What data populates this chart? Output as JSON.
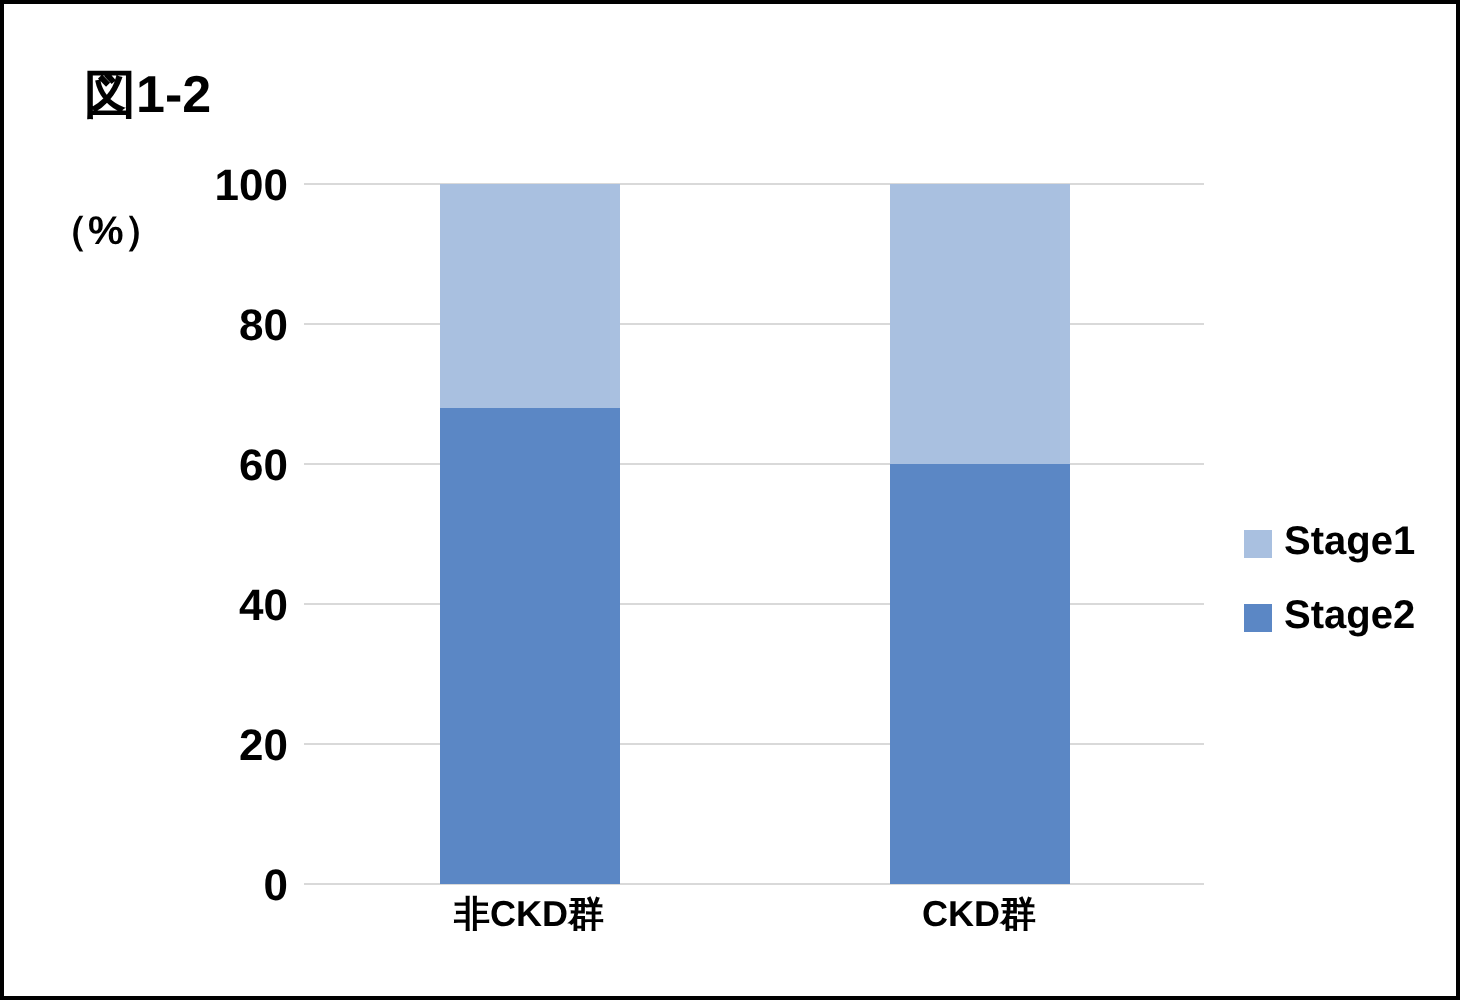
{
  "chart_data": {
    "type": "bar",
    "title": "図1-2",
    "ylabel": "（%）",
    "categories": [
      "非CKD群",
      "CKD群"
    ],
    "stacked": true,
    "series": [
      {
        "name": "Stage2",
        "color": "#5b87c5",
        "values": [
          68,
          60
        ]
      },
      {
        "name": "Stage1",
        "color": "#a9c0e0",
        "values": [
          32,
          40
        ]
      }
    ],
    "ylim": [
      0,
      100
    ],
    "yticks": [
      0,
      20,
      40,
      60,
      80,
      100
    ],
    "grid": "y",
    "legend": "right"
  }
}
